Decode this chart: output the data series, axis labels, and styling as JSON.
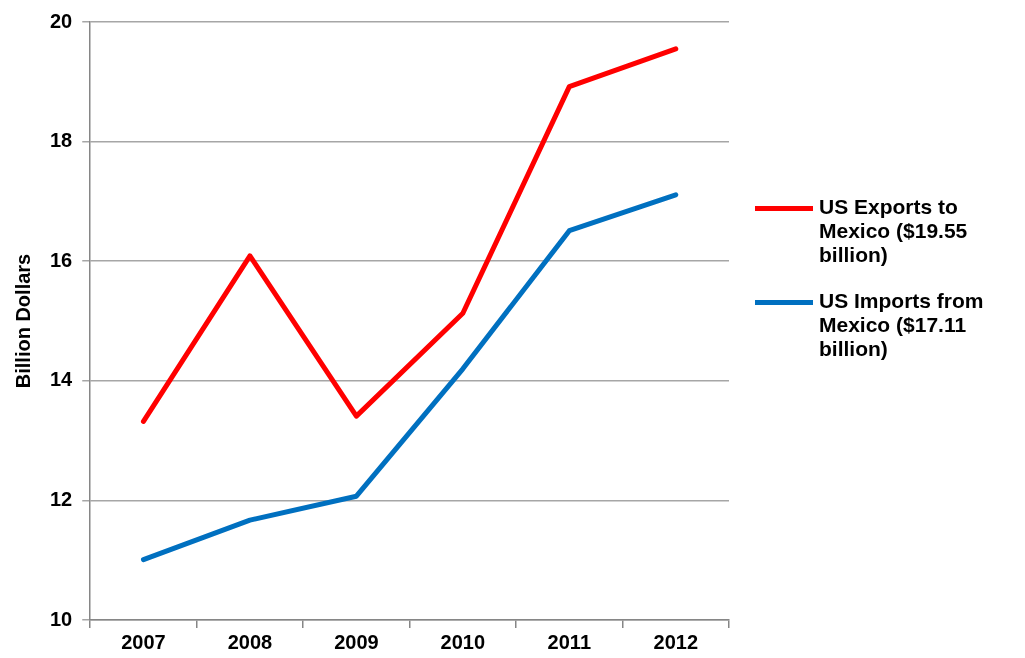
{
  "chart_data": {
    "type": "line",
    "ylabel": "Billion Dollars",
    "categories": [
      "2007",
      "2008",
      "2009",
      "2010",
      "2011",
      "2012"
    ],
    "series": [
      {
        "name": "US Exports to Mexico ($19.55 billion)",
        "color": "#ff0000",
        "values": [
          13.32,
          16.09,
          13.41,
          15.13,
          18.92,
          19.55
        ]
      },
      {
        "name": "US Imports from Mexico ($17.11 billion)",
        "color": "#0070c0",
        "values": [
          11.01,
          11.67,
          12.07,
          14.2,
          16.51,
          17.11
        ]
      }
    ],
    "ylim": [
      10,
      20
    ],
    "yticks": [
      10,
      12,
      14,
      16,
      18,
      20
    ],
    "grid": "y",
    "legend": "right",
    "marker": "none",
    "line_style": "solid"
  }
}
